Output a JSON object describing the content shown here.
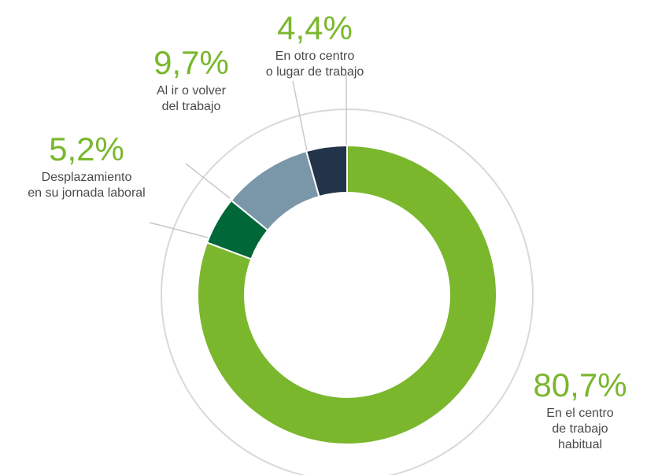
{
  "chart_data": {
    "type": "donut",
    "categories": [
      "En el centro\nde trabajo habitual",
      "Desplazamiento\nen su jornada laboral",
      "Al ir o volver\ndel trabajo",
      "En otro centro\no lugar de trabajo"
    ],
    "values": [
      80.7,
      5.2,
      9.7,
      4.4
    ],
    "value_labels": [
      "80,7%",
      "5,2%",
      "9,7%",
      "4,4%"
    ],
    "colors": [
      "#7ab72d",
      "#006838",
      "#7a97aa",
      "#23344a"
    ]
  }
}
